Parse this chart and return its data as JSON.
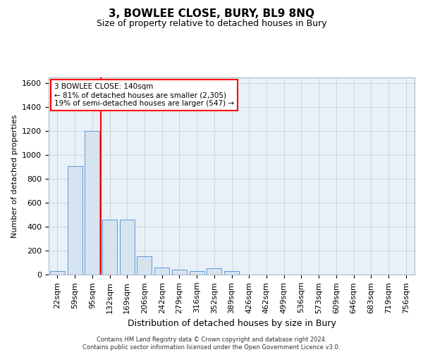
{
  "title": "3, BOWLEE CLOSE, BURY, BL9 8NQ",
  "subtitle": "Size of property relative to detached houses in Bury",
  "xlabel": "Distribution of detached houses by size in Bury",
  "ylabel": "Number of detached properties",
  "bar_color": "#d6e4f0",
  "bar_edge_color": "#5b9bd5",
  "background_color": "#e8f0f8",
  "vline_x": 2.5,
  "vline_color": "red",
  "annotation_text": "3 BOWLEE CLOSE: 140sqm\n← 81% of detached houses are smaller (2,305)\n19% of semi-detached houses are larger (547) →",
  "annotation_box_color": "white",
  "annotation_box_edge": "red",
  "footer_text": "Contains HM Land Registry data © Crown copyright and database right 2024.\nContains public sector information licensed under the Open Government Licence v3.0.",
  "categories": [
    "22sqm",
    "59sqm",
    "95sqm",
    "132sqm",
    "169sqm",
    "206sqm",
    "242sqm",
    "279sqm",
    "316sqm",
    "352sqm",
    "389sqm",
    "426sqm",
    "462sqm",
    "499sqm",
    "536sqm",
    "573sqm",
    "609sqm",
    "646sqm",
    "683sqm",
    "719sqm",
    "756sqm"
  ],
  "values": [
    30,
    910,
    1200,
    460,
    460,
    155,
    60,
    40,
    30,
    55,
    30,
    0,
    0,
    0,
    0,
    0,
    0,
    0,
    0,
    0,
    0
  ],
  "ylim": [
    0,
    1650
  ],
  "yticks": [
    0,
    200,
    400,
    600,
    800,
    1000,
    1200,
    1400,
    1600
  ],
  "title_fontsize": 11,
  "subtitle_fontsize": 9,
  "ylabel_fontsize": 8,
  "xlabel_fontsize": 9,
  "tick_fontsize": 8,
  "annot_fontsize": 7.5,
  "footer_fontsize": 6
}
